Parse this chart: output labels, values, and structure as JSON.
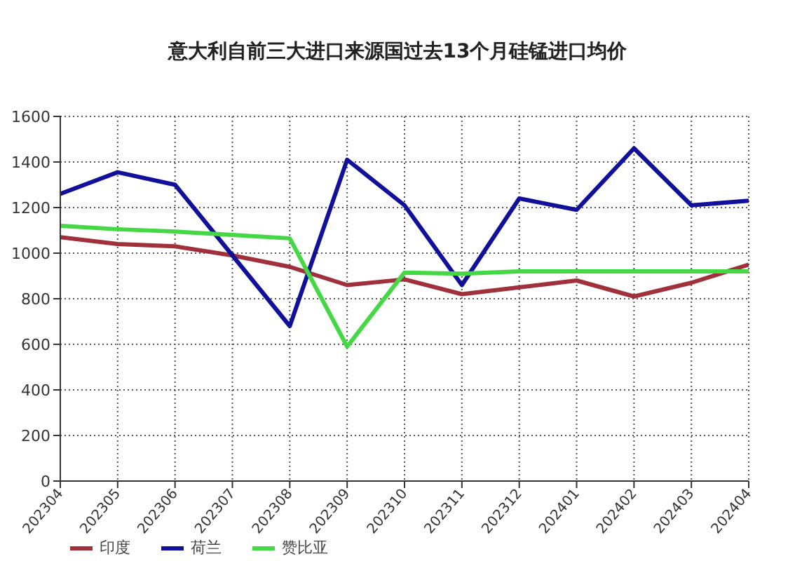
{
  "chart_data": {
    "type": "line",
    "title": "意大利自前三大进口来源国过去13个月硅锰进口均价",
    "categories": [
      "202304",
      "202305",
      "202306",
      "202307",
      "202308",
      "202309",
      "202310",
      "202311",
      "202312",
      "202401",
      "202402",
      "202403",
      "202404"
    ],
    "series": [
      {
        "name": "印度",
        "color": "#a0303a",
        "values": [
          1070,
          1040,
          1030,
          990,
          940,
          860,
          885,
          820,
          850,
          880,
          810,
          870,
          950
        ]
      },
      {
        "name": "荷兰",
        "color": "#10109a",
        "values": [
          1260,
          1355,
          1300,
          990,
          680,
          1410,
          1210,
          860,
          1240,
          1190,
          1460,
          1210,
          1230
        ]
      },
      {
        "name": "赞比亚",
        "color": "#44d944",
        "values": [
          1120,
          1105,
          1095,
          1080,
          1065,
          590,
          915,
          910,
          920,
          920,
          920,
          920,
          920
        ]
      }
    ],
    "ylim": [
      0,
      1600
    ],
    "yticks": [
      0,
      200,
      400,
      600,
      800,
      1000,
      1200,
      1400,
      1600
    ],
    "grid": true,
    "legend": "bottom left",
    "marker": "none",
    "line_style": "solid"
  }
}
